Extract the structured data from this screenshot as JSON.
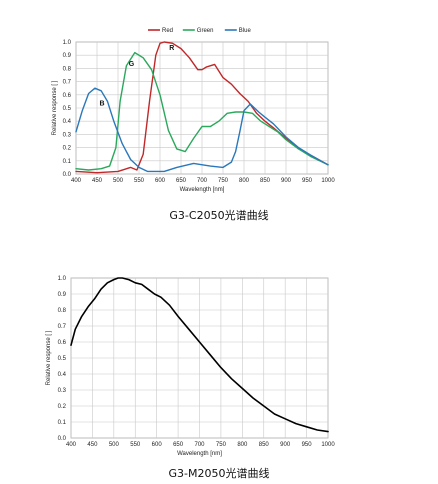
{
  "chart_data": [
    {
      "type": "line",
      "caption": "G3-C2050光谱曲线",
      "xlabel": "Wavelength [nm]",
      "ylabel": "Relative response [ ]",
      "xlim": [
        400,
        1000
      ],
      "ylim": [
        0,
        1
      ],
      "x_ticks": [
        400,
        450,
        500,
        550,
        600,
        650,
        700,
        750,
        800,
        850,
        900,
        950,
        1000
      ],
      "y_ticks": [
        0,
        0.1,
        0.2,
        0.3,
        0.4,
        0.5,
        0.6,
        0.7,
        0.8,
        0.9,
        1.0
      ],
      "grid": true,
      "legend": "top-center",
      "series": [
        {
          "name": "Red",
          "label": "R",
          "label_at": [
            628,
            0.94
          ],
          "color": "#c0282a",
          "x": [
            400,
            450,
            500,
            530,
            545,
            560,
            575,
            590,
            600,
            610,
            630,
            650,
            670,
            690,
            700,
            710,
            730,
            750,
            770,
            790,
            810,
            830,
            850,
            870,
            900,
            930,
            960,
            1000
          ],
          "y": [
            0.02,
            0.01,
            0.02,
            0.05,
            0.03,
            0.15,
            0.55,
            0.9,
            0.99,
            1.0,
            0.99,
            0.95,
            0.88,
            0.79,
            0.79,
            0.81,
            0.83,
            0.73,
            0.68,
            0.61,
            0.55,
            0.46,
            0.4,
            0.35,
            0.27,
            0.19,
            0.14,
            0.07
          ]
        },
        {
          "name": "Green",
          "label": "G",
          "label_at": [
            532,
            0.82
          ],
          "color": "#2ba85c",
          "x": [
            400,
            430,
            460,
            480,
            495,
            505,
            520,
            540,
            560,
            580,
            600,
            620,
            640,
            660,
            680,
            700,
            720,
            740,
            760,
            780,
            800,
            820,
            840,
            860,
            880,
            900,
            930,
            960,
            1000
          ],
          "y": [
            0.04,
            0.03,
            0.04,
            0.06,
            0.2,
            0.55,
            0.82,
            0.92,
            0.88,
            0.79,
            0.6,
            0.33,
            0.19,
            0.17,
            0.27,
            0.36,
            0.36,
            0.4,
            0.46,
            0.47,
            0.47,
            0.46,
            0.4,
            0.36,
            0.32,
            0.26,
            0.19,
            0.13,
            0.07
          ]
        },
        {
          "name": "Blue",
          "label": "B",
          "label_at": [
            462,
            0.52
          ],
          "color": "#2a78bb",
          "x": [
            400,
            415,
            430,
            445,
            460,
            475,
            490,
            510,
            530,
            550,
            570,
            590,
            610,
            640,
            680,
            720,
            750,
            770,
            780,
            790,
            800,
            815,
            825,
            835,
            850,
            870,
            900,
            930,
            960,
            1000
          ],
          "y": [
            0.32,
            0.48,
            0.61,
            0.65,
            0.63,
            0.55,
            0.4,
            0.23,
            0.11,
            0.05,
            0.02,
            0.02,
            0.02,
            0.05,
            0.08,
            0.06,
            0.05,
            0.09,
            0.17,
            0.32,
            0.48,
            0.53,
            0.5,
            0.47,
            0.43,
            0.38,
            0.28,
            0.2,
            0.14,
            0.07
          ]
        }
      ]
    },
    {
      "type": "line",
      "caption": "G3-M2050光谱曲线",
      "xlabel": "Wavelength [nm]",
      "ylabel": "Relative response [ ]",
      "xlim": [
        400,
        1000
      ],
      "ylim": [
        0,
        1
      ],
      "x_ticks": [
        400,
        450,
        500,
        550,
        600,
        650,
        700,
        750,
        800,
        850,
        900,
        950,
        1000
      ],
      "y_ticks": [
        0,
        0.1,
        0.2,
        0.3,
        0.4,
        0.5,
        0.6,
        0.7,
        0.8,
        0.9,
        1.0
      ],
      "grid": true,
      "series": [
        {
          "color": "#000000",
          "x": [
            400,
            410,
            425,
            440,
            455,
            470,
            485,
            500,
            510,
            520,
            535,
            550,
            565,
            580,
            595,
            610,
            630,
            650,
            675,
            700,
            725,
            750,
            775,
            800,
            825,
            850,
            875,
            900,
            925,
            950,
            975,
            1000
          ],
          "y": [
            0.58,
            0.68,
            0.76,
            0.82,
            0.87,
            0.93,
            0.97,
            0.99,
            1.0,
            1.0,
            0.99,
            0.97,
            0.96,
            0.93,
            0.9,
            0.88,
            0.83,
            0.76,
            0.68,
            0.6,
            0.52,
            0.44,
            0.37,
            0.31,
            0.25,
            0.2,
            0.15,
            0.12,
            0.09,
            0.07,
            0.05,
            0.04
          ]
        }
      ]
    }
  ]
}
